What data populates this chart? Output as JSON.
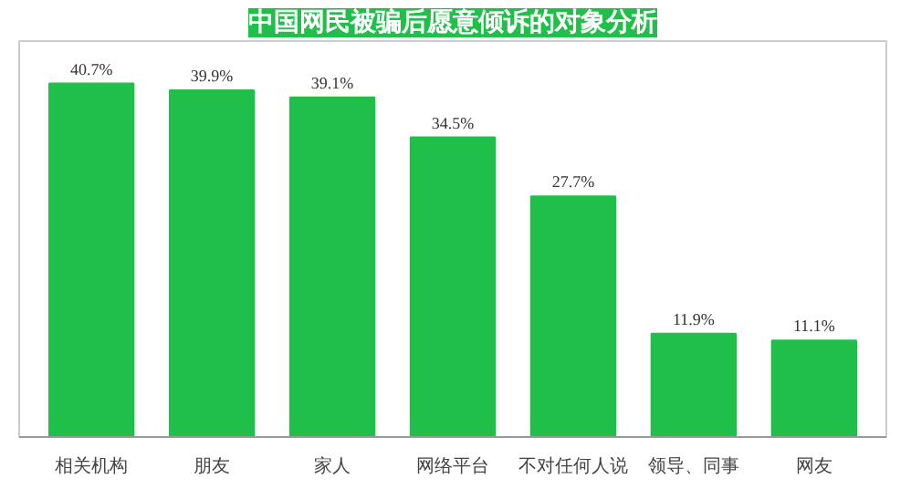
{
  "chart_data": {
    "type": "bar",
    "title": "中国网民被骗后愿意倾诉的对象分析",
    "categories": [
      "相关机构",
      "朋友",
      "家人",
      "网络平台",
      "不对任何人说",
      "领导、同事",
      "网友"
    ],
    "values": [
      40.7,
      39.9,
      39.1,
      34.5,
      27.7,
      11.9,
      11.1
    ],
    "value_labels": [
      "40.7%",
      "39.9%",
      "39.1%",
      "34.5%",
      "27.7%",
      "11.9%",
      "11.1%"
    ],
    "color": "#1fbf4a"
  }
}
